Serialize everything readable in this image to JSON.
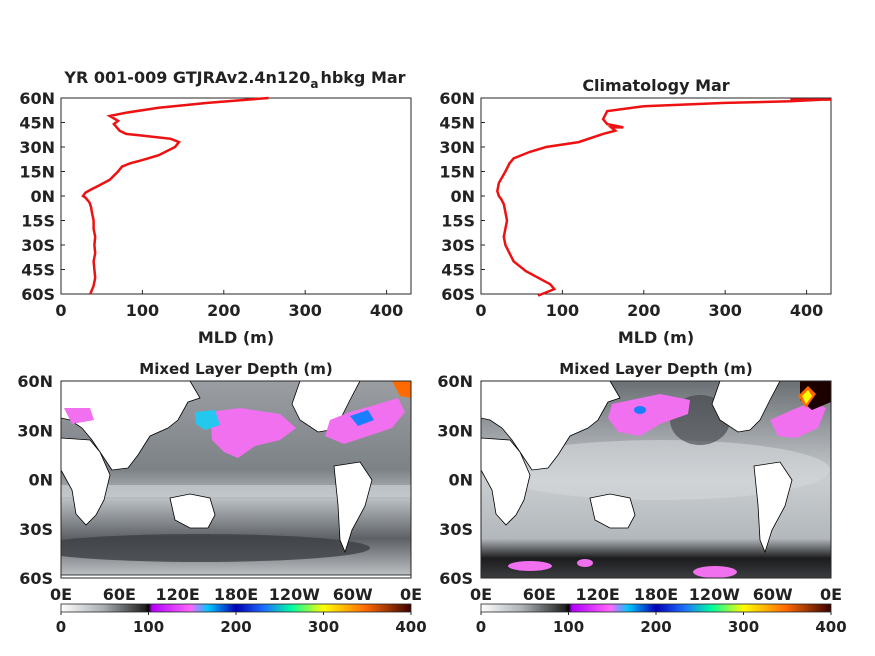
{
  "colors": {
    "profile": "#ee1111",
    "axis": "#262626",
    "coast": "#000000"
  },
  "chart_data": [
    {
      "type": "line",
      "title": "YR 001-009 GTJRAv2.4n120",
      "title_sub": "a",
      "title_tail": "hbkg Mar",
      "xlabel": "MLD (m)",
      "xlim": [
        0,
        430
      ],
      "ylim": [
        -60,
        60
      ],
      "xticks": [
        "0",
        "100",
        "200",
        "300",
        "400"
      ],
      "xtick_values": [
        0,
        100,
        200,
        300,
        400
      ],
      "yticks": [
        "60N",
        "45N",
        "30N",
        "15N",
        "0N",
        "15S",
        "30S",
        "45S",
        "60S"
      ],
      "ytick_values": [
        60,
        45,
        30,
        15,
        0,
        -15,
        -30,
        -45,
        -60
      ],
      "series": [
        {
          "x": [
            36,
            40,
            42,
            41,
            40,
            42,
            41,
            42,
            40,
            40,
            38,
            37,
            35,
            30,
            27,
            30,
            37,
            45,
            60,
            70,
            75,
            85,
            100,
            120,
            140,
            145,
            135,
            100,
            80,
            72,
            65,
            70,
            60,
            80,
            120,
            180,
            230,
            255
          ],
          "y": [
            -60,
            -55,
            -50,
            -45,
            -40,
            -35,
            -30,
            -25,
            -20,
            -15,
            -10,
            -7,
            -4,
            -1,
            0,
            2,
            4,
            6,
            10,
            15,
            18,
            20,
            22,
            25,
            30,
            33,
            35,
            37,
            38,
            40,
            44,
            46,
            49,
            51,
            54,
            57,
            59,
            60
          ]
        }
      ]
    },
    {
      "type": "line",
      "title": "Climatology Mar",
      "xlabel": "MLD (m)",
      "xlim": [
        0,
        430
      ],
      "ylim": [
        -60,
        60
      ],
      "xticks": [
        "0",
        "100",
        "200",
        "300",
        "400"
      ],
      "xtick_values": [
        0,
        100,
        200,
        300,
        400
      ],
      "yticks": [
        "60N",
        "45N",
        "30N",
        "15N",
        "0N",
        "15S",
        "30S",
        "45S",
        "60S"
      ],
      "ytick_values": [
        60,
        45,
        30,
        15,
        0,
        -15,
        -30,
        -45,
        -60
      ],
      "series": [
        {
          "x": [
            70,
            90,
            85,
            70,
            55,
            40,
            35,
            30,
            28,
            30,
            32,
            30,
            28,
            25,
            22,
            20,
            22,
            30,
            35,
            40,
            60,
            80,
            120,
            150,
            165,
            160,
            175,
            155,
            150,
            155,
            200,
            300,
            380,
            420,
            380,
            430
          ],
          "y": [
            -61,
            -57,
            -54,
            -50,
            -46,
            -40,
            -35,
            -30,
            -25,
            -20,
            -15,
            -10,
            -5,
            -2,
            0,
            3,
            8,
            15,
            20,
            23,
            27,
            30,
            33,
            38,
            40,
            42,
            42,
            44,
            47,
            52,
            55,
            57,
            58,
            59,
            59,
            59
          ]
        }
      ]
    },
    {
      "type": "heatmap",
      "title": "Mixed Layer Depth (m)",
      "xticks": [
        "0E",
        "60E",
        "120E",
        "180E",
        "120W",
        "60W",
        "0E"
      ],
      "yticks": [
        "60N",
        "30N",
        "0N",
        "30S",
        "60S"
      ],
      "colorbar": {
        "range": [
          0,
          400
        ],
        "ticks": [
          "0",
          "100",
          "200",
          "300",
          "400"
        ]
      }
    },
    {
      "type": "heatmap",
      "title": "Mixed Layer Depth (m)",
      "xticks": [
        "0E",
        "60E",
        "120E",
        "180E",
        "120W",
        "60W",
        "0E"
      ],
      "yticks": [
        "60N",
        "30N",
        "0N",
        "30S",
        "60S"
      ],
      "colorbar": {
        "range": [
          0,
          400
        ],
        "ticks": [
          "0",
          "100",
          "200",
          "300",
          "400"
        ]
      }
    }
  ]
}
